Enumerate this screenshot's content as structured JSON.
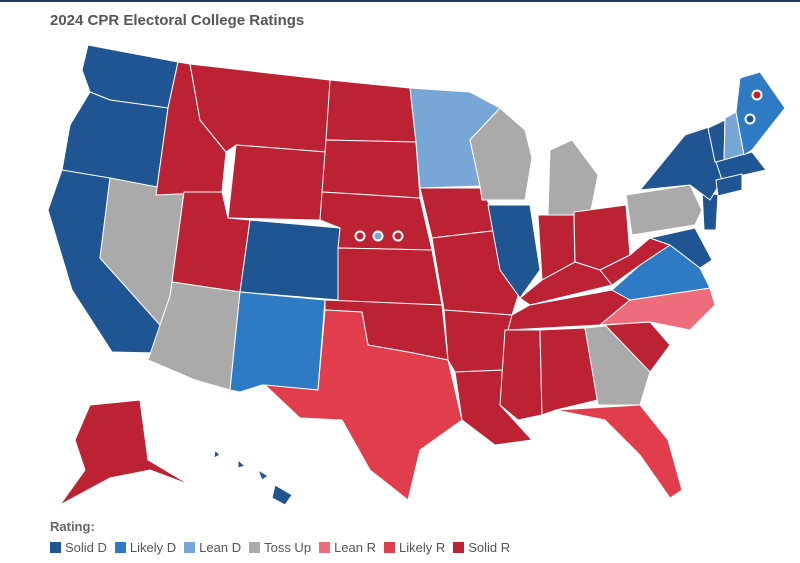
{
  "title": "2024 CPR Electoral College Ratings",
  "legend": {
    "title": "Rating:",
    "items": [
      {
        "label": "Solid D",
        "color": "#1f5592"
      },
      {
        "label": "Likely D",
        "color": "#2f7ac4"
      },
      {
        "label": "Lean D",
        "color": "#78a6d6"
      },
      {
        "label": "Toss Up",
        "color": "#aaaaaa"
      },
      {
        "label": "Lean R",
        "color": "#ef6c7a"
      },
      {
        "label": "Likely R",
        "color": "#e23d4d"
      },
      {
        "label": "Solid R",
        "color": "#bc2234"
      }
    ]
  }
}
